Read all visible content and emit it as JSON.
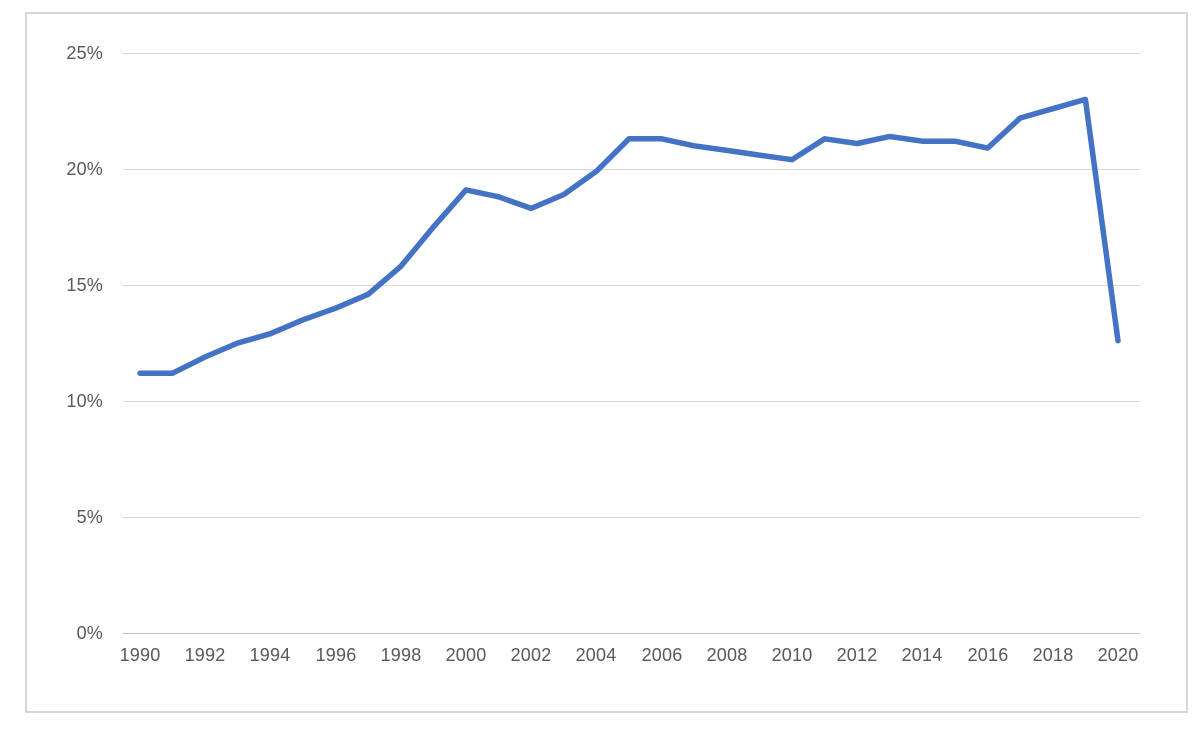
{
  "chart_data": {
    "type": "line",
    "title": "",
    "xlabel": "",
    "ylabel": "",
    "unit": "%",
    "grid": true,
    "legend": false,
    "xlim": [
      1990,
      2020
    ],
    "ylim": [
      0,
      25
    ],
    "x": [
      1990,
      1991,
      1992,
      1993,
      1994,
      1995,
      1996,
      1997,
      1998,
      1999,
      2000,
      2001,
      2002,
      2003,
      2004,
      2005,
      2006,
      2007,
      2008,
      2009,
      2010,
      2011,
      2012,
      2013,
      2014,
      2015,
      2016,
      2017,
      2018,
      2019,
      2020
    ],
    "values": [
      11.2,
      11.2,
      11.9,
      12.5,
      12.9,
      13.5,
      14.0,
      14.6,
      15.8,
      17.5,
      19.1,
      18.8,
      18.3,
      18.9,
      19.9,
      21.3,
      21.3,
      21.0,
      20.8,
      20.6,
      20.4,
      21.3,
      21.1,
      21.4,
      21.2,
      21.2,
      20.9,
      22.2,
      22.6,
      23.0,
      12.6
    ],
    "y_tick_values": [
      0,
      5,
      10,
      15,
      20,
      25
    ],
    "y_tick_labels": [
      "0%",
      "5%",
      "10%",
      "15%",
      "20%",
      "25%"
    ],
    "x_tick_years": [
      1990,
      1992,
      1994,
      1996,
      1998,
      2000,
      2002,
      2004,
      2006,
      2008,
      2010,
      2012,
      2014,
      2016,
      2018,
      2020
    ],
    "x_tick_labels": [
      "1990",
      "1992",
      "1994",
      "1996",
      "1998",
      "2000",
      "2002",
      "2004",
      "2006",
      "2008",
      "2010",
      "2012",
      "2014",
      "2016",
      "2018",
      "2020"
    ],
    "colors": {
      "line": "#4472C4",
      "gridline": "#D9D9D9",
      "axis_line": "#BFBFBF",
      "tick_label": "#595959",
      "chart_border": "#D6D6D6",
      "background": "#FFFFFF"
    }
  }
}
